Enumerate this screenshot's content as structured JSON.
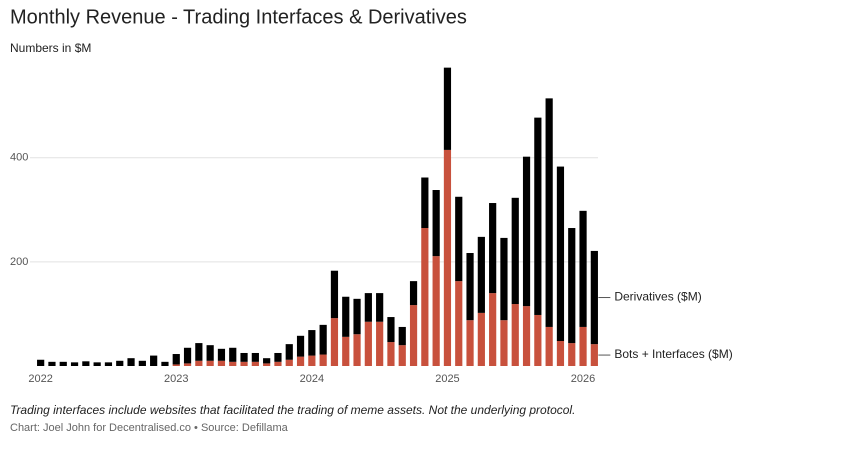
{
  "chart_data": {
    "type": "stacked_bar",
    "title": "Monthly Revenue - Trading Interfaces & Derivatives",
    "subtitle": "Numbers in $M",
    "note": "Trading interfaces include websites that facilitated the trading of meme assets. Not the underlying protocol.",
    "source": "Chart: Joel John for Decentralised.co • Source: Defillama",
    "categories": [
      "2022",
      null,
      null,
      null,
      null,
      null,
      null,
      null,
      null,
      null,
      null,
      null,
      "2023",
      null,
      null,
      null,
      null,
      null,
      null,
      null,
      null,
      null,
      null,
      null,
      "2024",
      null,
      null,
      null,
      null,
      null,
      null,
      null,
      null,
      null,
      null,
      null,
      "2025",
      null,
      null,
      null,
      null,
      null,
      null,
      null,
      null,
      null,
      null,
      null,
      "2026",
      null
    ],
    "series": [
      {
        "name": "Bots + Interfaces ($M)",
        "color": "#c8513d",
        "values": [
          0,
          0,
          0,
          0,
          0,
          0,
          0,
          0,
          0,
          0,
          0,
          0,
          3,
          5,
          10,
          10,
          10,
          8,
          8,
          8,
          5,
          8,
          12,
          18,
          20,
          22,
          92,
          56,
          61,
          85,
          85,
          46,
          40,
          117,
          265,
          211,
          415,
          163,
          88,
          102,
          140,
          88,
          119,
          115,
          98,
          75,
          48,
          44,
          75,
          42
        ]
      },
      {
        "name": "Derivatives ($M)",
        "color": "#000000",
        "values": [
          12,
          8,
          8,
          7,
          9,
          7,
          7,
          10,
          15,
          10,
          20,
          8,
          20,
          30,
          34,
          30,
          23,
          27,
          17,
          17,
          10,
          17,
          30,
          40,
          49,
          57,
          91,
          77,
          68,
          55,
          55,
          48,
          35,
          46,
          97,
          127,
          158,
          162,
          129,
          146,
          173,
          158,
          204,
          287,
          379,
          439,
          335,
          221,
          223,
          179
        ]
      }
    ],
    "ylim": [
      0,
      580
    ],
    "yticks": [
      200,
      400
    ],
    "grid": true
  }
}
